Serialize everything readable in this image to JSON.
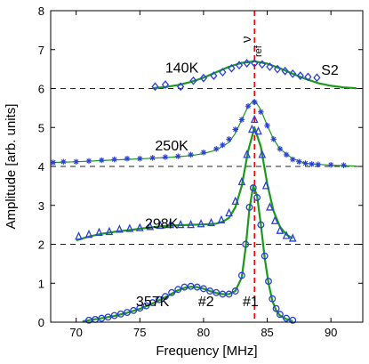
{
  "chart_data": {
    "type": "line",
    "title": "",
    "xlabel": "Frequency [MHz]",
    "ylabel": "Amplitude [arb. units]",
    "xlim": [
      68,
      92.5
    ],
    "ylim": [
      0,
      8
    ],
    "xticks": [
      70,
      75,
      80,
      85,
      90
    ],
    "yticks": [
      0,
      1,
      2,
      3,
      4,
      5,
      6,
      7,
      8
    ],
    "grid": false,
    "panel_label": "S2",
    "reference_line": {
      "x": 84,
      "label": "ν",
      "sublabel": "ref",
      "color": "#ff0000"
    },
    "baselines": [
      2,
      4,
      6
    ],
    "peak_labels": [
      {
        "text": "#2",
        "x": 80.2,
        "y": 0.55
      },
      {
        "text": "#1",
        "x": 83.7,
        "y": 0.55
      }
    ],
    "fit_color": "#1a9a1a",
    "marker_color": "#2a3fd8",
    "series": [
      {
        "name": "140K",
        "label_pos": [
          78.3,
          6.55
        ],
        "offset": 6,
        "marker": "diamond",
        "x": [
          76.2,
          77.0,
          78.2,
          79.2,
          80.0,
          80.8,
          81.5,
          82.2,
          82.8,
          83.4,
          84.0,
          84.6,
          85.2,
          85.8,
          86.4,
          87.0,
          87.6,
          88.2,
          88.9
        ],
        "y": [
          6.05,
          6.1,
          6.05,
          6.2,
          6.27,
          6.33,
          6.42,
          6.52,
          6.6,
          6.65,
          6.65,
          6.62,
          6.56,
          6.5,
          6.45,
          6.38,
          6.33,
          6.3,
          6.28
        ],
        "fit_x": [
          76,
          77,
          78,
          79,
          80,
          81,
          82,
          83,
          84,
          85,
          86,
          87,
          88,
          89,
          90,
          91,
          92
        ],
        "fit_y": [
          6.01,
          6.04,
          6.09,
          6.17,
          6.28,
          6.42,
          6.56,
          6.66,
          6.7,
          6.64,
          6.52,
          6.38,
          6.25,
          6.14,
          6.07,
          6.03,
          6.01
        ]
      },
      {
        "name": "250K",
        "label_pos": [
          77.5,
          4.55
        ],
        "offset": 4,
        "marker": "star",
        "x": [
          68.2,
          69.0,
          70.0,
          71.0,
          72.0,
          73.0,
          74.0,
          75.0,
          76.0,
          77.0,
          78.0,
          79.0,
          80.0,
          81.0,
          81.5,
          82.0,
          82.5,
          83.0,
          83.5,
          84.0,
          84.5,
          85.0,
          85.5,
          86.0,
          86.5,
          87.0,
          87.5,
          88.0,
          88.5,
          89.0,
          90.0,
          91.0
        ],
        "y": [
          4.1,
          4.12,
          4.12,
          4.14,
          4.16,
          4.18,
          4.2,
          4.2,
          4.22,
          4.24,
          4.26,
          4.3,
          4.36,
          4.45,
          4.55,
          4.7,
          4.95,
          5.2,
          5.55,
          5.65,
          5.4,
          5.05,
          4.7,
          4.45,
          4.3,
          4.18,
          4.12,
          4.08,
          4.06,
          4.05,
          4.04,
          4.03
        ],
        "fit_x": [
          68,
          70,
          72,
          74,
          76,
          78,
          79,
          80,
          81,
          82,
          82.5,
          83,
          83.5,
          84,
          84.5,
          85,
          85.5,
          86,
          87,
          88,
          90,
          92
        ],
        "fit_y": [
          4.1,
          4.12,
          4.15,
          4.18,
          4.21,
          4.25,
          4.28,
          4.33,
          4.42,
          4.62,
          4.85,
          5.2,
          5.55,
          5.72,
          5.45,
          5.05,
          4.7,
          4.45,
          4.2,
          4.08,
          4.03,
          4.01
        ]
      },
      {
        "name": "298K",
        "label_pos": [
          76.7,
          2.55
        ],
        "offset": 2,
        "marker": "triangle",
        "x": [
          70.2,
          71.0,
          71.8,
          72.6,
          73.4,
          74.2,
          75.0,
          75.8,
          76.6,
          77.4,
          78.2,
          79.0,
          79.8,
          80.6,
          81.4,
          82.0,
          82.5,
          83.0,
          83.4,
          83.8,
          84.0,
          84.3,
          84.6,
          84.9,
          85.2,
          85.6,
          86.0,
          86.5,
          87.0
        ],
        "y": [
          2.2,
          2.25,
          2.3,
          2.32,
          2.38,
          2.4,
          2.42,
          2.45,
          2.48,
          2.5,
          2.5,
          2.5,
          2.52,
          2.55,
          2.62,
          2.8,
          3.1,
          3.6,
          4.3,
          4.95,
          5.2,
          4.9,
          4.3,
          3.5,
          2.95,
          2.6,
          2.35,
          2.22,
          2.15
        ],
        "fit_x": [
          70,
          71,
          72,
          73,
          74,
          75,
          76,
          77,
          78,
          79,
          80,
          81,
          81.5,
          82,
          82.5,
          83,
          83.5,
          84,
          84.5,
          85,
          85.5,
          86,
          86.5,
          87
        ],
        "fit_y": [
          2.1,
          2.2,
          2.27,
          2.32,
          2.36,
          2.4,
          2.44,
          2.47,
          2.49,
          2.5,
          2.51,
          2.53,
          2.58,
          2.68,
          2.95,
          3.5,
          4.4,
          5.0,
          4.5,
          3.55,
          2.85,
          2.45,
          2.25,
          2.15
        ]
      },
      {
        "name": "357K",
        "label_pos": [
          76.0,
          0.55
        ],
        "offset": 0,
        "marker": "circle",
        "x": [
          71.0,
          71.5,
          72.0,
          72.5,
          73.0,
          73.5,
          74.0,
          74.5,
          75.0,
          75.5,
          76.0,
          76.5,
          77.0,
          77.5,
          78.0,
          78.5,
          79.0,
          79.5,
          80.0,
          80.5,
          81.0,
          81.5,
          82.0,
          82.5,
          83.0,
          83.3,
          83.6,
          83.9,
          84.2,
          84.5,
          84.8,
          85.1,
          85.4,
          85.7,
          86.0,
          86.5,
          87.0
        ],
        "y": [
          0.05,
          0.07,
          0.1,
          0.13,
          0.17,
          0.21,
          0.25,
          0.3,
          0.36,
          0.42,
          0.5,
          0.58,
          0.66,
          0.76,
          0.84,
          0.9,
          0.92,
          0.9,
          0.86,
          0.8,
          0.76,
          0.72,
          0.72,
          0.8,
          1.2,
          2.0,
          2.95,
          3.45,
          3.2,
          2.5,
          1.7,
          1.05,
          0.6,
          0.35,
          0.2,
          0.1,
          0.05
        ],
        "fit_x": [
          70.5,
          71,
          72,
          73,
          74,
          75,
          76,
          77,
          78,
          78.5,
          79,
          79.5,
          80,
          80.5,
          81,
          81.5,
          82,
          82.5,
          83,
          83.3,
          83.6,
          83.9,
          84.2,
          84.5,
          84.8,
          85.1,
          85.4,
          85.7,
          86,
          86.5,
          87
        ],
        "fit_y": [
          0.02,
          0.05,
          0.1,
          0.16,
          0.24,
          0.34,
          0.48,
          0.64,
          0.82,
          0.88,
          0.91,
          0.9,
          0.86,
          0.8,
          0.75,
          0.72,
          0.72,
          0.8,
          1.15,
          1.9,
          2.9,
          3.5,
          3.25,
          2.5,
          1.65,
          1.0,
          0.55,
          0.3,
          0.17,
          0.08,
          0.03
        ]
      }
    ]
  }
}
